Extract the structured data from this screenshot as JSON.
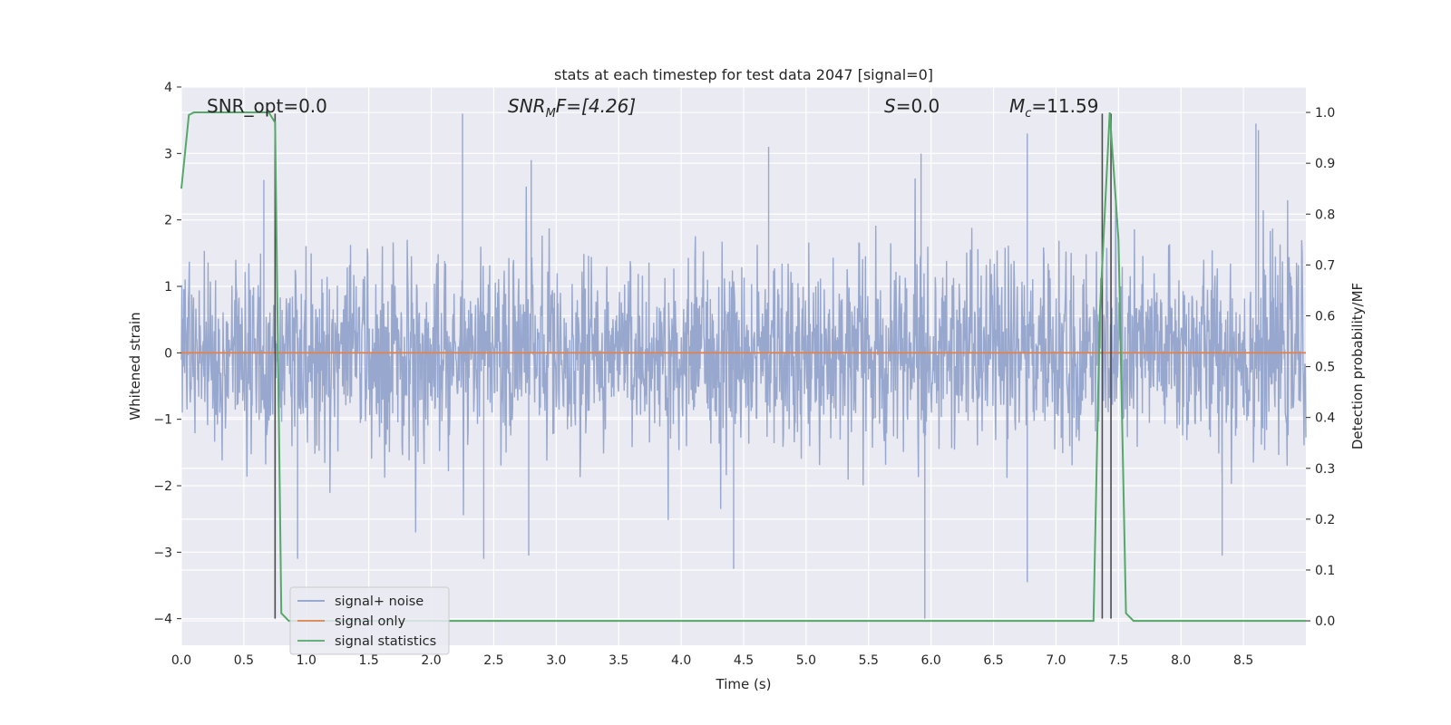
{
  "chart_data": {
    "type": "line",
    "title": "stats at each timestep for test data 2047 [signal=0]",
    "xlabel": "Time (s)",
    "ylabel_left": "Whitened strain",
    "ylabel_right": "Detection probability/MF",
    "xlim": [
      0.0,
      9.0
    ],
    "ylim_left": [
      -4.4,
      4.0
    ],
    "ylim_right": [
      -0.048,
      1.05
    ],
    "x_ticks": [
      "0.0",
      "0.5",
      "1.0",
      "1.5",
      "2.0",
      "2.5",
      "3.0",
      "3.5",
      "4.0",
      "4.5",
      "5.0",
      "5.5",
      "6.0",
      "6.5",
      "7.0",
      "7.5",
      "8.0",
      "8.5"
    ],
    "y_ticks_left": [
      "4",
      "3",
      "2",
      "1",
      "0",
      "−1",
      "−2",
      "−3",
      "−4"
    ],
    "y_ticks_right": [
      "1.0",
      "0.9",
      "0.8",
      "0.7",
      "0.6",
      "0.5",
      "0.4",
      "0.3",
      "0.2",
      "0.1",
      "0.0"
    ],
    "grid": true,
    "legend_position": "lower-left",
    "annotations": {
      "snr_opt": "SNR_opt=0.0",
      "snr_mf_prefix": "SNR",
      "snr_mf_sub": "M",
      "snr_mf_suffix": "F=[4.26]",
      "s_prefix": "S",
      "s_suffix": "=0.0",
      "mc_prefix": "M",
      "mc_sub": "c",
      "mc_suffix": "=11.59"
    },
    "series": [
      {
        "name": "signal+ noise",
        "axis": "left",
        "color": "#8ea0c9",
        "description_stats": {
          "typical_range": [
            -1.6,
            1.6
          ],
          "max": 3.6,
          "min": -4.0
        },
        "notable_peaks": [
          [
            0.66,
            2.6
          ],
          [
            0.93,
            -3.1
          ],
          [
            2.25,
            3.6
          ],
          [
            2.42,
            -3.1
          ],
          [
            2.8,
            2.9
          ],
          [
            2.78,
            -3.05
          ],
          [
            4.42,
            -3.25
          ],
          [
            4.7,
            3.1
          ],
          [
            5.95,
            -4.0
          ],
          [
            5.92,
            3.0
          ],
          [
            6.77,
            3.3
          ],
          [
            6.77,
            -3.45
          ],
          [
            8.33,
            -3.05
          ],
          [
            8.6,
            3.45
          ],
          [
            8.62,
            3.35
          ]
        ]
      },
      {
        "name": "signal only",
        "axis": "left",
        "color": "#dd8452",
        "x": [
          0.0,
          9.0
        ],
        "y": [
          0.0,
          0.0
        ]
      },
      {
        "name": "signal statistics",
        "axis": "right",
        "color": "#55a868",
        "x": [
          0.0,
          0.06,
          0.1,
          0.7,
          0.75,
          0.8,
          0.86,
          7.3,
          7.35,
          7.43,
          7.5,
          7.56,
          7.62,
          9.0
        ],
        "y": [
          0.85,
          0.995,
          1.0,
          1.0,
          0.98,
          0.015,
          0.0,
          0.0,
          0.6,
          1.0,
          0.75,
          0.015,
          0.0,
          0.0
        ]
      }
    ],
    "vertical_lines": [
      {
        "x": 0.75,
        "y_from": -4.0,
        "y_to": 3.6,
        "color": "#4c4c4c"
      },
      {
        "x": 7.37,
        "y_from": -4.0,
        "y_to": 3.6,
        "color": "#4c4c4c"
      },
      {
        "x": 7.44,
        "y_from": -4.0,
        "y_to": 3.6,
        "color": "#4c4c4c"
      }
    ],
    "colors": {
      "axes_bg": "#eaeaf2",
      "grid": "#ffffff"
    }
  }
}
